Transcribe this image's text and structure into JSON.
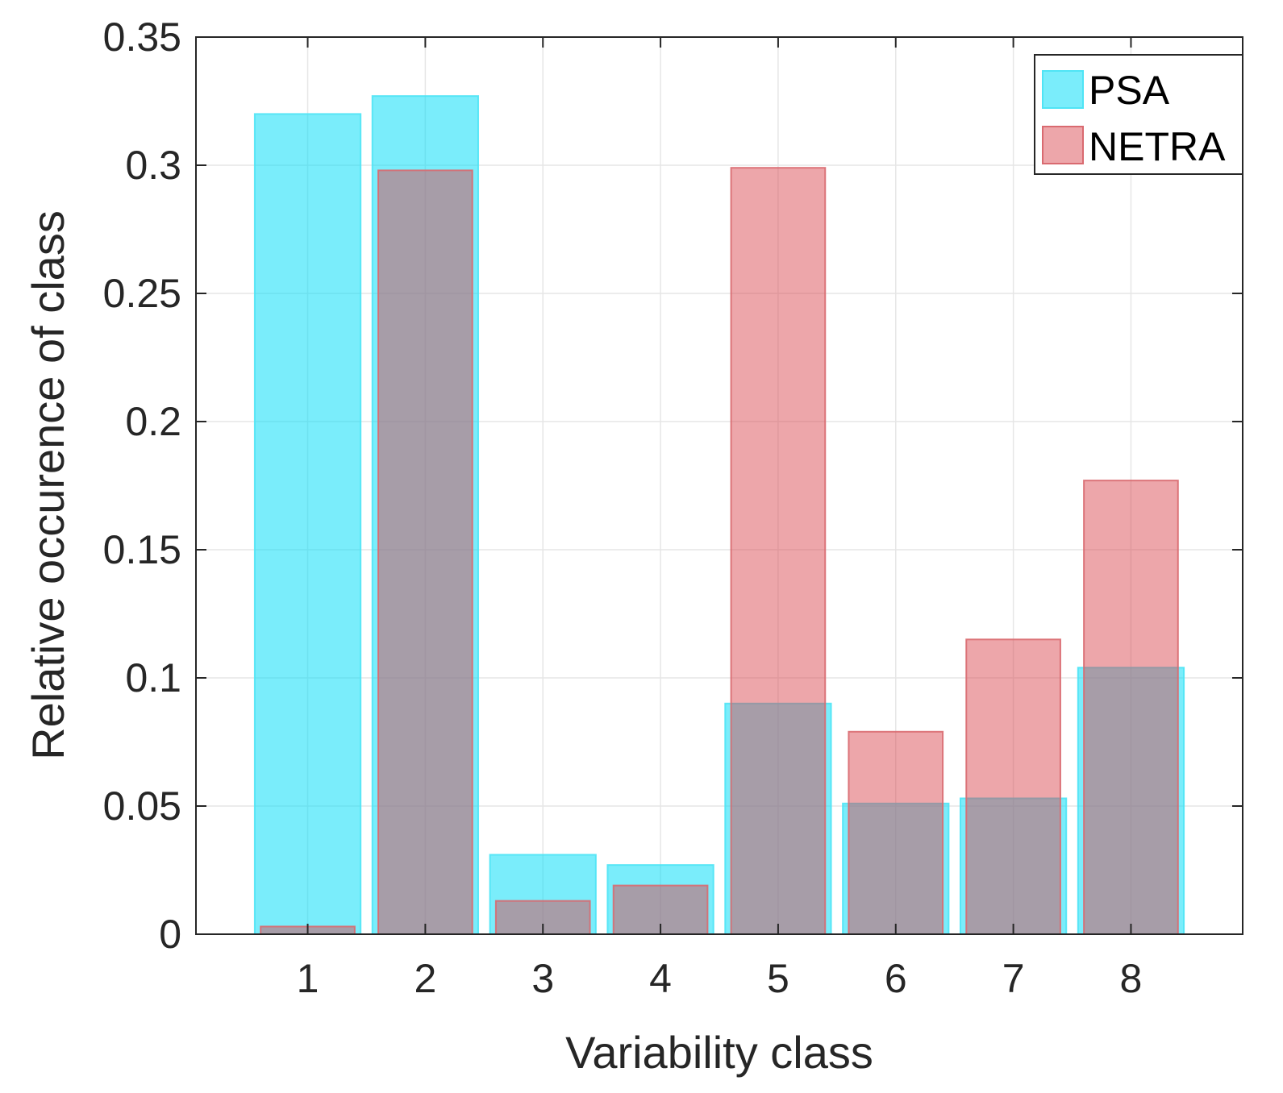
{
  "chart_data": {
    "type": "bar",
    "title": "",
    "xlabel": "Variability class",
    "ylabel": "Relative occurence of class",
    "categories": [
      "1",
      "2",
      "3",
      "4",
      "5",
      "6",
      "7",
      "8"
    ],
    "ylim": [
      0,
      0.35
    ],
    "yticks": [
      0,
      0.05,
      0.1,
      0.15,
      0.2,
      0.25,
      0.3,
      0.35
    ],
    "ytick_labels": [
      "0",
      "0.05",
      "0.1",
      "0.15",
      "0.2",
      "0.25",
      "0.3",
      "0.35"
    ],
    "grid": true,
    "legend_position": "top-right",
    "series": [
      {
        "name": "PSA",
        "color": "#00dcf7",
        "edge_color": "#4fe4f5",
        "opacity": 0.52,
        "values": [
          0.32,
          0.327,
          0.031,
          0.027,
          0.09,
          0.051,
          0.053,
          0.104
        ]
      },
      {
        "name": "NETRA",
        "color": "#d9454d",
        "edge_color": "#d96a70",
        "opacity": 0.48,
        "values": [
          0.003,
          0.298,
          0.013,
          0.019,
          0.299,
          0.079,
          0.115,
          0.177
        ]
      }
    ]
  }
}
